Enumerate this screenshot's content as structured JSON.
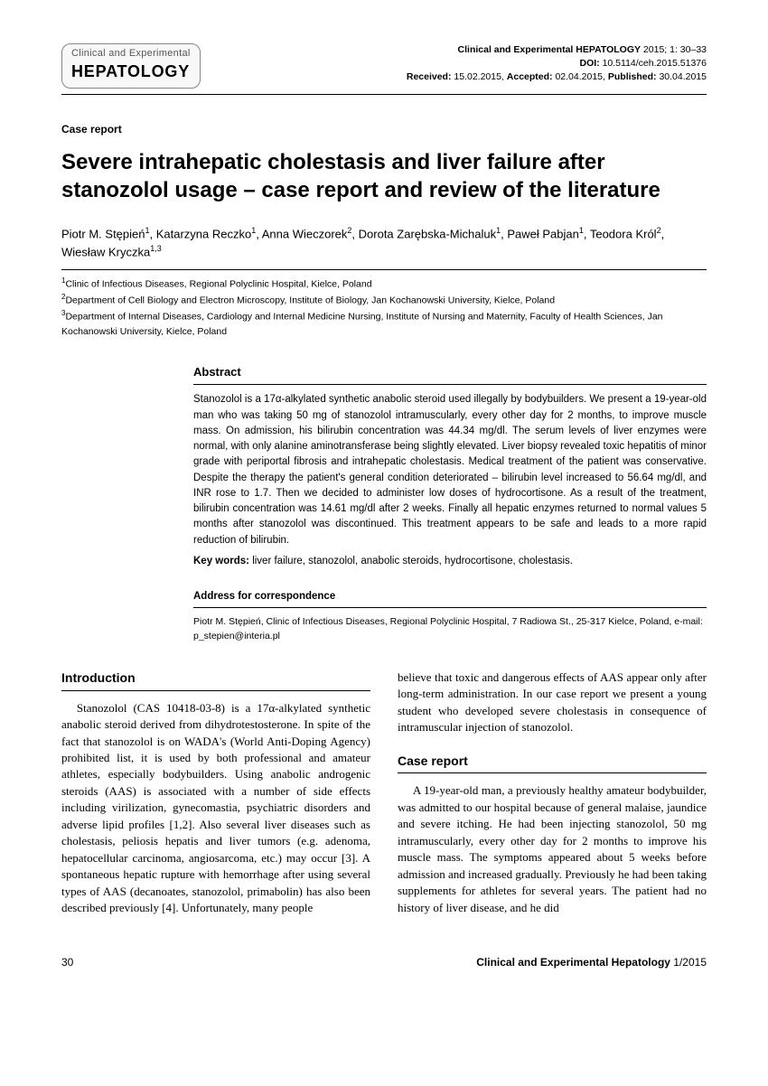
{
  "header": {
    "logo_line1": "Clinical and Experimental",
    "logo_line2": "HEPATOLOGY",
    "journal_cite_name": "Clinical and Experimental HEPATOLOGY",
    "journal_cite_rest": " 2015; 1: 30–33",
    "doi_label": "DOI:",
    "doi_value": " 10.5114/ceh.2015.51376",
    "received_label": "Received:",
    "received_value": " 15.02.2015, ",
    "accepted_label": "Accepted:",
    "accepted_value": " 02.04.2015, ",
    "published_label": "Published:",
    "published_value": " 30.04.2015"
  },
  "article_type": "Case report",
  "title": "Severe intrahepatic cholestasis and liver failure after stanozolol usage – case report and review of the literature",
  "authors_html": "Piotr M. Stępień<sup>1</sup>, Katarzyna Reczko<sup>1</sup>, Anna Wieczorek<sup>2</sup>, Dorota Zarębska-Michaluk<sup>1</sup>, Paweł Pabjan<sup>1</sup>, Teodora Król<sup>2</sup>, Wiesław Kryczka<sup>1,3</sup>",
  "affiliations": {
    "a1": "Clinic of Infectious Diseases, Regional Polyclinic Hospital, Kielce, Poland",
    "a2": "Department of Cell Biology and Electron Microscopy, Institute of Biology, Jan Kochanowski University, Kielce, Poland",
    "a3": "Department of Internal Diseases, Cardiology and Internal Medicine Nursing, Institute of Nursing and Maternity, Faculty of Health Sciences, Jan Kochanowski University, Kielce, Poland"
  },
  "abstract": {
    "heading": "Abstract",
    "body": "Stanozolol is a 17α-alkylated synthetic anabolic steroid used illegally by bodybuilders. We present a 19-year-old man who was taking 50 mg of stanozolol intramuscularly, every other day for 2 months, to improve muscle mass. On admission, his bilirubin concentration was 44.34 mg/dl. The serum levels of liver enzymes were normal, with only alanine aminotransferase being slightly elevated. Liver biopsy revealed toxic hepatitis of minor grade with periportal fibrosis and intrahepatic cholestasis. Medical treatment of the patient was conservative. Despite the therapy the patient's general condition deteriorated – bilirubin level increased to 56.64 mg/dl, and INR rose to 1.7. Then we decided to administer low doses of hydrocortisone. As a result of the treatment, bilirubin concentration was 14.61 mg/dl after 2 weeks. Finally all hepatic enzymes returned to normal values 5 months after stanozolol was discontinued. This treatment appears to be safe and leads to a more rapid reduction of bilirubin.",
    "keywords_label": "Key words:",
    "keywords_value": " liver failure, stanozolol, anabolic steroids, hydrocortisone, cholestasis."
  },
  "correspondence": {
    "heading": "Address for correspondence",
    "body": "Piotr M. Stępień, Clinic of Infectious Diseases, Regional Polyclinic Hospital, 7 Radiowa St., 25-317 Kielce, Poland, e-mail: p_stepien@interia.pl"
  },
  "sections": {
    "intro_heading": "Introduction",
    "intro_body": "Stanozolol (CAS 10418-03-8) is a 17α-alkylated synthetic anabolic steroid derived from dihydrotestosterone. In spite of the fact that stanozolol is on WADA's (World Anti-Doping Agency) prohibited list, it is used by both professional and amateur athletes, especially bodybuilders. Using anabolic androgenic steroids (AAS) is associated with a number of side effects including virilization, gynecomastia, psychiatric disorders and adverse lipid profiles [1,2]. Also several liver diseases such as cholestasis, peliosis hepatis and liver tumors (e.g. adenoma, hepatocellular carcinoma, angiosarcoma, etc.) may occur [3]. A spontaneous hepatic rupture with hemorrhage after using several types of AAS (decanoates, stanozolol, primabolin) has also been described previously [4]. Unfortunately, many people",
    "col2_top": "believe that toxic and dangerous effects of AAS appear only after long-term administration. In our case report we present a young student who developed severe cholestasis in consequence of intramuscular injection of stanozolol.",
    "case_heading": "Case report",
    "case_body": "A 19-year-old man, a previously healthy amateur bodybuilder, was admitted to our hospital because of general malaise, jaundice and severe itching. He had been injecting stanozolol, 50 mg intramuscularly, every other day for 2 months to improve his muscle mass. The symptoms appeared about 5 weeks before admission and increased gradually. Previously he had been taking supplements for athletes for several years. The patient had no history of liver disease, and he did"
  },
  "footer": {
    "page": "30",
    "journal": "Clinical and Experimental Hepatology",
    "issue": " 1/2015"
  }
}
